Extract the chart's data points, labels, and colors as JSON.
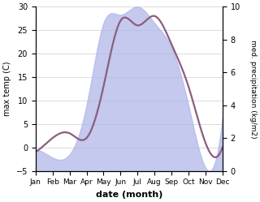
{
  "months": [
    "Jan",
    "Feb",
    "Mar",
    "Apr",
    "May",
    "Jun",
    "Jul",
    "Aug",
    "Sep",
    "Oct",
    "Nov",
    "Dec"
  ],
  "temp": [
    -1,
    2,
    3,
    2,
    13,
    27,
    26,
    28,
    22,
    13,
    1,
    0
  ],
  "precip": [
    1.3,
    0.8,
    1.0,
    4.0,
    9.0,
    9.5,
    10.0,
    9.0,
    7.5,
    4.0,
    0.2,
    3.2
  ],
  "temp_ylim": [
    -5,
    30
  ],
  "precip_ylim": [
    0,
    10
  ],
  "temp_color": "#8B5E7E",
  "precip_fill_color": "#b0b8e8",
  "precip_fill_alpha": 0.75,
  "xlabel": "date (month)",
  "ylabel_left": "max temp (C)",
  "ylabel_right": "med. precipitation (kg/m2)",
  "bg_color": "#ffffff",
  "grid_color": "#cccccc",
  "temp_linewidth": 1.6
}
